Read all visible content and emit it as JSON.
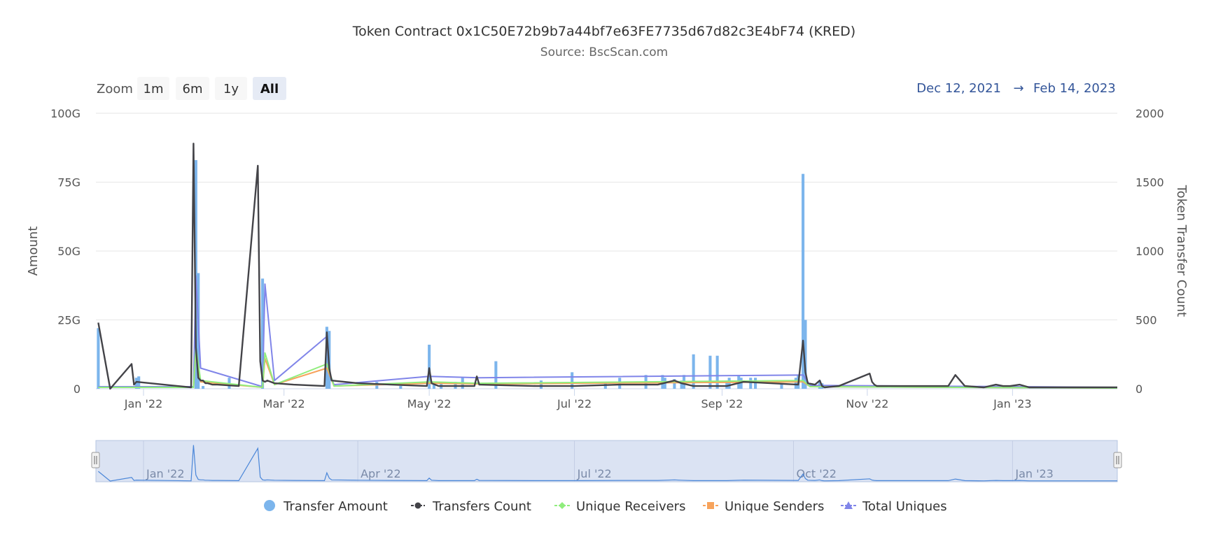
{
  "header": {
    "title": "Token Contract 0x1C50E72b9b7a44bf7e63FE7735d67d82c3E4bF74 (KRED)",
    "subtitle": "Source: BscScan.com"
  },
  "zoom": {
    "label": "Zoom",
    "buttons": [
      "1m",
      "6m",
      "1y",
      "All"
    ],
    "selected": "All"
  },
  "range": {
    "from": "Dec 12, 2021",
    "arrow": "→",
    "to": "Feb 14, 2023"
  },
  "navigator": {
    "labels": [
      "Jan '22",
      "Apr '22",
      "Jul '22",
      "Oct '22",
      "Jan '23"
    ]
  },
  "legend": [
    {
      "name": "Transfer Amount",
      "color": "#7cb5ec",
      "symbol": "circle"
    },
    {
      "name": "Transfers Count",
      "color": "#434348",
      "symbol": "circle-line"
    },
    {
      "name": "Unique Receivers",
      "color": "#90ed7d",
      "symbol": "diamond-line"
    },
    {
      "name": "Unique Senders",
      "color": "#f7a35c",
      "symbol": "square-line"
    },
    {
      "name": "Total Uniques",
      "color": "#8085e9",
      "symbol": "triangle-line"
    }
  ],
  "chart_data": {
    "type": "bar",
    "title": "Token Contract 0x1C50E72b9b7a44bf7e63FE7735d67d82c3E4bF74 (KRED)",
    "subtitle": "Source: BscScan.com",
    "x_ticks": [
      "Jan '22",
      "Mar '22",
      "May '22",
      "Jul '22",
      "Sep '22",
      "Nov '22",
      "Jan '23"
    ],
    "x_tick_dates": [
      "2022-01-01",
      "2022-03-01",
      "2022-05-01",
      "2022-07-01",
      "2022-09-01",
      "2022-11-01",
      "2023-01-01"
    ],
    "xlim": [
      "2021-12-12",
      "2023-02-14"
    ],
    "y_left": {
      "label": "Amount",
      "ticks": [
        "0",
        "25G",
        "50G",
        "75G",
        "100G"
      ],
      "ylim": [
        0,
        100000000000
      ]
    },
    "y_right": {
      "label": "Token Transfer Count",
      "ticks": [
        "0",
        "500",
        "1000",
        "1500",
        "2000"
      ],
      "ylim": [
        0,
        2000
      ]
    },
    "grid": true,
    "legend_position": "bottom",
    "series": [
      {
        "name": "Transfer Amount",
        "type": "column",
        "axis": "left",
        "color": "#7cb5ec",
        "x": [
          "2021-12-13",
          "2021-12-29",
          "2021-12-30",
          "2022-01-23",
          "2022-01-24",
          "2022-01-26",
          "2022-02-06",
          "2022-02-20",
          "2022-03-19",
          "2022-03-20",
          "2022-04-09",
          "2022-04-19",
          "2022-05-01",
          "2022-05-03",
          "2022-05-06",
          "2022-05-12",
          "2022-05-15",
          "2022-05-29",
          "2022-06-17",
          "2022-06-30",
          "2022-07-14",
          "2022-07-20",
          "2022-07-31",
          "2022-08-07",
          "2022-08-08",
          "2022-08-12",
          "2022-08-15",
          "2022-08-16",
          "2022-08-20",
          "2022-08-27",
          "2022-08-30",
          "2022-09-03",
          "2022-09-04",
          "2022-09-08",
          "2022-09-09",
          "2022-09-13",
          "2022-09-15",
          "2022-09-26",
          "2022-10-02",
          "2022-10-03",
          "2022-10-05",
          "2022-10-06",
          "2022-10-12",
          "2022-10-13"
        ],
        "values": [
          22000000000,
          4000000000,
          4500000000,
          83000000000,
          42000000000,
          1000000000,
          4000000000,
          40000000000,
          22500000000,
          21000000000,
          2500000000,
          1000000000,
          16000000000,
          2000000000,
          2000000000,
          2500000000,
          4000000000,
          10000000000,
          3000000000,
          6000000000,
          2000000000,
          4000000000,
          5000000000,
          5000000000,
          4000000000,
          3500000000,
          3000000000,
          5000000000,
          12500000000,
          12000000000,
          12000000000,
          3000000000,
          4000000000,
          5000000000,
          4000000000,
          4000000000,
          4000000000,
          2000000000,
          4000000000,
          5000000000,
          78000000000,
          25000000000,
          3000000000,
          2000000000
        ]
      },
      {
        "name": "Transfers Count",
        "type": "line",
        "axis": "right",
        "color": "#434348",
        "x": [
          "2021-12-13",
          "2021-12-18",
          "2021-12-27",
          "2021-12-28",
          "2021-12-29",
          "2022-01-21",
          "2022-01-22",
          "2022-01-23",
          "2022-01-24",
          "2022-01-25",
          "2022-01-26",
          "2022-01-27",
          "2022-01-28",
          "2022-01-30",
          "2022-02-01",
          "2022-02-10",
          "2022-02-18",
          "2022-02-19",
          "2022-02-20",
          "2022-02-21",
          "2022-02-22",
          "2022-02-25",
          "2022-03-05",
          "2022-03-18",
          "2022-03-19",
          "2022-03-20",
          "2022-03-21",
          "2022-04-01",
          "2022-04-15",
          "2022-04-30",
          "2022-05-01",
          "2022-05-02",
          "2022-05-05",
          "2022-05-20",
          "2022-05-21",
          "2022-05-22",
          "2022-06-15",
          "2022-07-01",
          "2022-07-20",
          "2022-08-05",
          "2022-08-12",
          "2022-08-15",
          "2022-08-20",
          "2022-09-03",
          "2022-09-10",
          "2022-10-03",
          "2022-10-05",
          "2022-10-06",
          "2022-10-07",
          "2022-10-10",
          "2022-10-12",
          "2022-10-13",
          "2022-10-14",
          "2022-10-20",
          "2022-11-02",
          "2022-11-03",
          "2022-11-04",
          "2022-11-05",
          "2022-11-10",
          "2022-11-20",
          "2022-12-05",
          "2022-12-08",
          "2022-12-12",
          "2022-12-20",
          "2022-12-25",
          "2022-12-28",
          "2022-12-31",
          "2023-01-04",
          "2023-01-08",
          "2023-01-15",
          "2023-02-14"
        ],
        "values": [
          480,
          0,
          180,
          30,
          50,
          10,
          1780,
          300,
          80,
          60,
          60,
          40,
          40,
          30,
          30,
          20,
          1620,
          200,
          60,
          50,
          60,
          40,
          30,
          20,
          410,
          150,
          60,
          40,
          30,
          20,
          150,
          40,
          20,
          20,
          90,
          30,
          20,
          20,
          30,
          30,
          60,
          40,
          20,
          20,
          50,
          30,
          350,
          120,
          40,
          30,
          60,
          20,
          10,
          20,
          110,
          50,
          30,
          20,
          20,
          20,
          20,
          100,
          20,
          10,
          30,
          20,
          20,
          30,
          10,
          10,
          10
        ]
      },
      {
        "name": "Unique Receivers",
        "type": "line",
        "axis": "right",
        "color": "#90ed7d",
        "x": [
          "2021-12-13",
          "2022-01-22",
          "2022-01-23",
          "2022-01-25",
          "2022-02-20",
          "2022-02-21",
          "2022-02-25",
          "2022-03-19",
          "2022-03-22",
          "2022-05-01",
          "2022-05-22",
          "2022-10-05",
          "2022-10-08",
          "2023-02-14"
        ],
        "values": [
          10,
          10,
          300,
          60,
          10,
          260,
          30,
          180,
          20,
          50,
          40,
          60,
          15,
          5
        ]
      },
      {
        "name": "Unique Senders",
        "type": "line",
        "axis": "right",
        "color": "#f7a35c",
        "x": [
          "2021-12-13",
          "2022-01-22",
          "2022-01-23",
          "2022-01-25",
          "2022-02-20",
          "2022-02-21",
          "2022-02-25",
          "2022-03-19",
          "2022-03-22",
          "2022-05-01",
          "2022-05-22",
          "2022-10-05",
          "2022-10-08",
          "2023-02-14"
        ],
        "values": [
          10,
          10,
          270,
          50,
          10,
          220,
          30,
          150,
          20,
          40,
          35,
          50,
          15,
          5
        ]
      },
      {
        "name": "Total Uniques",
        "type": "line",
        "axis": "right",
        "color": "#8085e9",
        "x": [
          "2021-12-13",
          "2022-01-22",
          "2022-01-23",
          "2022-01-25",
          "2022-02-20",
          "2022-02-21",
          "2022-02-25",
          "2022-03-19",
          "2022-03-20",
          "2022-03-22",
          "2022-05-01",
          "2022-05-22",
          "2022-10-05",
          "2022-10-08",
          "2023-02-14"
        ],
        "values": [
          15,
          15,
          820,
          150,
          15,
          760,
          60,
          380,
          120,
          30,
          90,
          80,
          100,
          25,
          10
        ]
      }
    ]
  }
}
